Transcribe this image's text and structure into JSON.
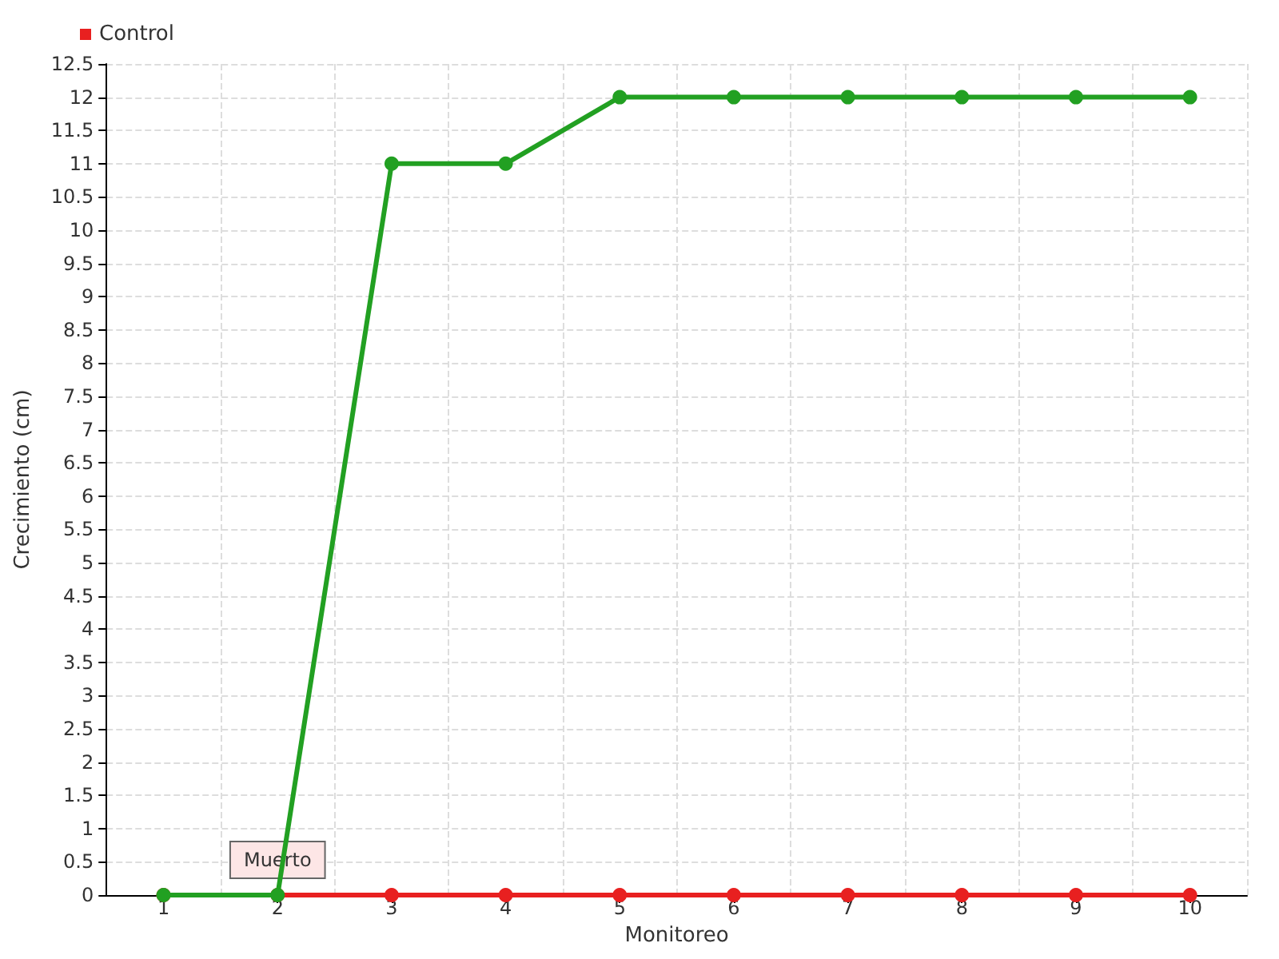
{
  "chart_data": {
    "type": "line",
    "xlabel": "Monitoreo",
    "ylabel": "Crecimiento (cm)",
    "categories": [
      "1",
      "2",
      "3",
      "4",
      "5",
      "6",
      "7",
      "8",
      "9",
      "10"
    ],
    "series": [
      {
        "color": "#22a022",
        "values": [
          0,
          0,
          11,
          11,
          12,
          12,
          12,
          12,
          12,
          12
        ]
      },
      {
        "name": "Control",
        "color": "#e82020",
        "values": [
          0,
          0,
          0,
          0,
          0,
          0,
          0,
          0,
          0,
          0
        ]
      }
    ],
    "ylim": [
      0,
      12.5
    ],
    "yticks": [
      0,
      0.5,
      1,
      1.5,
      2,
      2.5,
      3,
      3.5,
      4,
      4.5,
      5,
      5.5,
      6,
      6.5,
      7,
      7.5,
      8,
      8.5,
      9,
      9.5,
      10,
      10.5,
      11,
      11.5,
      12,
      12.5
    ],
    "grid": true,
    "legend": "top left",
    "marker": "circle",
    "line_style": "solid",
    "annotations": [
      {
        "text": "Muerto",
        "x": "2",
        "y": 0
      }
    ]
  }
}
